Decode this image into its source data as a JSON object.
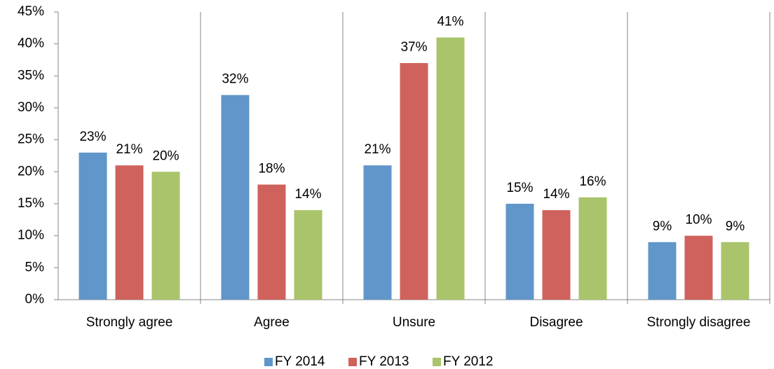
{
  "chart_data": {
    "type": "bar",
    "categories": [
      "Strongly agree",
      "Agree",
      "Unsure",
      "Disagree",
      "Strongly disagree"
    ],
    "series": [
      {
        "name": "FY 2014",
        "color": "#6096c9",
        "values": [
          23,
          32,
          21,
          15,
          9
        ],
        "value_labels": [
          "23%",
          "32%",
          "21%",
          "15%",
          "9%"
        ]
      },
      {
        "name": "FY 2013",
        "color": "#cf625c",
        "values": [
          21,
          18,
          37,
          14,
          10
        ],
        "value_labels": [
          "21%",
          "18%",
          "37%",
          "14%",
          "10%"
        ]
      },
      {
        "name": "FY 2012",
        "color": "#a9c46a",
        "values": [
          20,
          14,
          41,
          16,
          9
        ],
        "value_labels": [
          "20%",
          "14%",
          "41%",
          "16%",
          "9%"
        ]
      }
    ],
    "ylim": [
      0,
      45
    ],
    "yticks": [
      {
        "value": 0,
        "label": "0%"
      },
      {
        "value": 5,
        "label": "5%"
      },
      {
        "value": 10,
        "label": "10%"
      },
      {
        "value": 15,
        "label": "15%"
      },
      {
        "value": 20,
        "label": "20%"
      },
      {
        "value": 25,
        "label": "25%"
      },
      {
        "value": 30,
        "label": "30%"
      },
      {
        "value": 35,
        "label": "35%"
      },
      {
        "value": 40,
        "label": "40%"
      },
      {
        "value": 45,
        "label": "45%"
      }
    ],
    "legend": "bottom"
  }
}
